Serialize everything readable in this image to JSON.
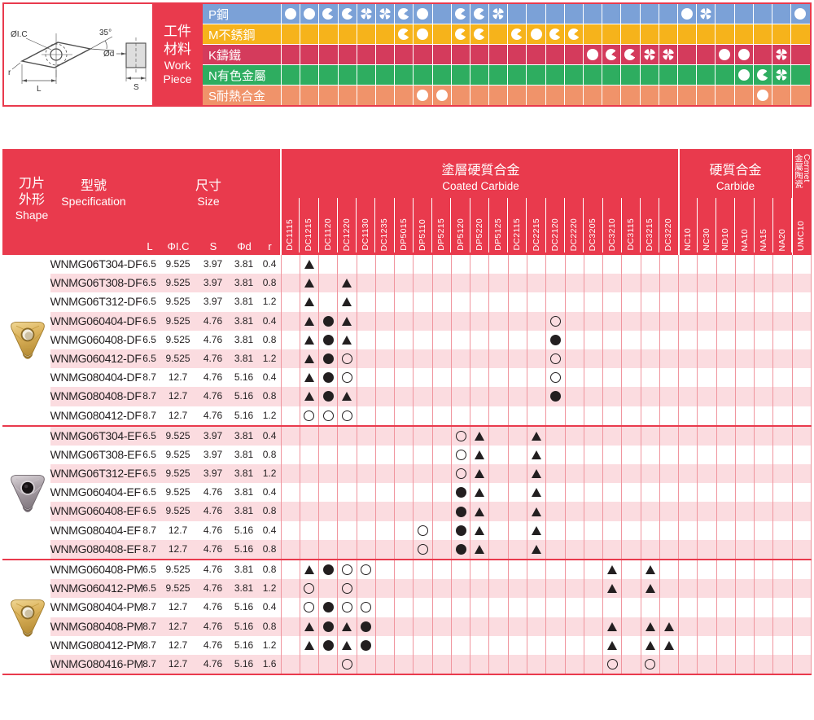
{
  "diagram": {
    "ic": "ØI.C",
    "angle": "35°",
    "d": "Ød",
    "r": "r",
    "length": "L",
    "thickness": "S"
  },
  "workpiece": {
    "title_zh": [
      "工件",
      "材料"
    ],
    "title_en": [
      "Work",
      "Piece"
    ],
    "rows": [
      {
        "id": "P",
        "label": "P鋼",
        "color": "#7ba1d7",
        "marks": {
          "DC1115": "full",
          "DC1215": "full",
          "DC1120": "pac",
          "DC1220": "pac",
          "DC1130": "petal",
          "DC1235": "petal",
          "DP5015": "pac",
          "DP5110": "full",
          "DP5120": "pac",
          "DP5220": "pac",
          "DP5125": "petal",
          "NC10": "full",
          "NC30": "petal",
          "UMC10": "full"
        }
      },
      {
        "id": "M",
        "label": "M不銹鋼",
        "color": "#f6b31b",
        "marks": {
          "DP5015": "pac",
          "DP5110": "full",
          "DP5120": "pac",
          "DP5220": "pac",
          "DC2115": "pac",
          "DC2215": "full",
          "DC2120": "pac",
          "DC2220": "pac"
        }
      },
      {
        "id": "K",
        "label": "K鑄鐵",
        "color": "#d43b5c",
        "marks": {
          "DC3205": "full",
          "DC3210": "pac",
          "DC3115": "pac",
          "DC3215": "petal",
          "DC3220": "petal",
          "ND10": "full",
          "NA10": "full",
          "NA20": "petal"
        }
      },
      {
        "id": "N",
        "label": "N有色金屬",
        "color": "#2ead60",
        "marks": {
          "NA10": "full",
          "NA15": "pac",
          "NA20": "petal"
        }
      },
      {
        "id": "S",
        "label": "S耐熱合金",
        "color": "#f0936a",
        "marks": {
          "DP5110": "full",
          "DP5215": "full",
          "NA15": "full"
        }
      }
    ]
  },
  "columns": {
    "groups": [
      {
        "zh": "塗層硬質合金",
        "en": "Coated Carbide",
        "span": 21
      },
      {
        "zh": "硬質合金",
        "en": "Carbide",
        "span": 6
      },
      {
        "zh": "金屬陶瓷",
        "en": "Cermet",
        "span": 1
      }
    ],
    "grades": [
      "DC1115",
      "DC1215",
      "DC1120",
      "DC1220",
      "DC1130",
      "DC1235",
      "DP5015",
      "DP5110",
      "DP5215",
      "DP5120",
      "DP5220",
      "DP5125",
      "DC2115",
      "DC2215",
      "DC2120",
      "DC2220",
      "DC3205",
      "DC3210",
      "DC3115",
      "DC3215",
      "DC3220",
      "NC10",
      "NC30",
      "ND10",
      "NA10",
      "NA15",
      "NA20",
      "UMC10"
    ]
  },
  "table_head": {
    "shape_zh": [
      "刀片",
      "外形"
    ],
    "shape_en": "Shape",
    "spec_zh": "型號",
    "spec_en": "Specification",
    "size_zh": "尺寸",
    "size_en": "Size",
    "size_cols": [
      "L",
      "ΦI.C",
      "S",
      "Φd",
      "r"
    ]
  },
  "groups": [
    {
      "suffix": "DF",
      "insert_style": "gold",
      "rows": [
        {
          "spec": "WNMG06T304-DF",
          "sizes": [
            "6.5",
            "9.525",
            "3.97",
            "3.81",
            "0.4"
          ],
          "marks": {
            "DC1215": "tri"
          }
        },
        {
          "spec": "WNMG06T308-DF",
          "sizes": [
            "6.5",
            "9.525",
            "3.97",
            "3.81",
            "0.8"
          ],
          "marks": {
            "DC1215": "tri",
            "DC1220": "tri"
          }
        },
        {
          "spec": "WNMG06T312-DF",
          "sizes": [
            "6.5",
            "9.525",
            "3.97",
            "3.81",
            "1.2"
          ],
          "marks": {
            "DC1215": "tri",
            "DC1220": "tri"
          }
        },
        {
          "spec": "WNMG060404-DF",
          "sizes": [
            "6.5",
            "9.525",
            "4.76",
            "3.81",
            "0.4"
          ],
          "marks": {
            "DC1215": "tri",
            "DC1120": "fill",
            "DC1220": "tri",
            "DC2120": "open"
          }
        },
        {
          "spec": "WNMG060408-DF",
          "sizes": [
            "6.5",
            "9.525",
            "4.76",
            "3.81",
            "0.8"
          ],
          "marks": {
            "DC1215": "tri",
            "DC1120": "fill",
            "DC1220": "tri",
            "DC2120": "fill"
          }
        },
        {
          "spec": "WNMG060412-DF",
          "sizes": [
            "6.5",
            "9.525",
            "4.76",
            "3.81",
            "1.2"
          ],
          "marks": {
            "DC1215": "tri",
            "DC1120": "fill",
            "DC1220": "open",
            "DC2120": "open"
          }
        },
        {
          "spec": "WNMG080404-DF",
          "sizes": [
            "8.7",
            "12.7",
            "4.76",
            "5.16",
            "0.4"
          ],
          "marks": {
            "DC1215": "tri",
            "DC1120": "fill",
            "DC1220": "open",
            "DC2120": "open"
          }
        },
        {
          "spec": "WNMG080408-DF",
          "sizes": [
            "8.7",
            "12.7",
            "4.76",
            "5.16",
            "0.8"
          ],
          "marks": {
            "DC1215": "tri",
            "DC1120": "fill",
            "DC1220": "tri",
            "DC2120": "fill"
          }
        },
        {
          "spec": "WNMG080412-DF",
          "sizes": [
            "8.7",
            "12.7",
            "4.76",
            "5.16",
            "1.2"
          ],
          "marks": {
            "DC1215": "open",
            "DC1120": "open",
            "DC1220": "open"
          }
        }
      ]
    },
    {
      "suffix": "EF",
      "insert_style": "silver",
      "rows": [
        {
          "spec": "WNMG06T304-EF",
          "sizes": [
            "6.5",
            "9.525",
            "3.97",
            "3.81",
            "0.4"
          ],
          "marks": {
            "DP5120": "open",
            "DP5220": "tri",
            "DC2215": "tri"
          }
        },
        {
          "spec": "WNMG06T308-EF",
          "sizes": [
            "6.5",
            "9.525",
            "3.97",
            "3.81",
            "0.8"
          ],
          "marks": {
            "DP5120": "open",
            "DP5220": "tri",
            "DC2215": "tri"
          }
        },
        {
          "spec": "WNMG06T312-EF",
          "sizes": [
            "6.5",
            "9.525",
            "3.97",
            "3.81",
            "1.2"
          ],
          "marks": {
            "DP5120": "open",
            "DP5220": "tri",
            "DC2215": "tri"
          }
        },
        {
          "spec": "WNMG060404-EF",
          "sizes": [
            "6.5",
            "9.525",
            "4.76",
            "3.81",
            "0.4"
          ],
          "marks": {
            "DP5120": "fill",
            "DP5220": "tri",
            "DC2215": "tri"
          }
        },
        {
          "spec": "WNMG060408-EF",
          "sizes": [
            "6.5",
            "9.525",
            "4.76",
            "3.81",
            "0.8"
          ],
          "marks": {
            "DP5120": "fill",
            "DP5220": "tri",
            "DC2215": "tri"
          }
        },
        {
          "spec": "WNMG080404-EF",
          "sizes": [
            "8.7",
            "12.7",
            "4.76",
            "5.16",
            "0.4"
          ],
          "marks": {
            "DP5110": "open",
            "DP5120": "fill",
            "DP5220": "tri",
            "DC2215": "tri"
          }
        },
        {
          "spec": "WNMG080408-EF",
          "sizes": [
            "8.7",
            "12.7",
            "4.76",
            "5.16",
            "0.8"
          ],
          "marks": {
            "DP5110": "open",
            "DP5120": "fill",
            "DP5220": "tri",
            "DC2215": "tri"
          }
        }
      ]
    },
    {
      "suffix": "PM",
      "insert_style": "gold",
      "rows": [
        {
          "spec": "WNMG060408-PM",
          "sizes": [
            "6.5",
            "9.525",
            "4.76",
            "3.81",
            "0.8"
          ],
          "marks": {
            "DC1215": "tri",
            "DC1120": "fill",
            "DC1220": "open",
            "DC1130": "open",
            "DC3210": "tri",
            "DC3215": "tri"
          }
        },
        {
          "spec": "WNMG060412-PM",
          "sizes": [
            "6.5",
            "9.525",
            "4.76",
            "3.81",
            "1.2"
          ],
          "marks": {
            "DC1215": "open",
            "DC1220": "open",
            "DC3210": "tri",
            "DC3215": "tri"
          }
        },
        {
          "spec": "WNMG080404-PM",
          "sizes": [
            "8.7",
            "12.7",
            "4.76",
            "5.16",
            "0.4"
          ],
          "marks": {
            "DC1215": "open",
            "DC1120": "fill",
            "DC1220": "open",
            "DC1130": "open"
          }
        },
        {
          "spec": "WNMG080408-PM",
          "sizes": [
            "8.7",
            "12.7",
            "4.76",
            "5.16",
            "0.8"
          ],
          "marks": {
            "DC1215": "tri",
            "DC1120": "fill",
            "DC1220": "tri",
            "DC1130": "fill",
            "DC3210": "tri",
            "DC3215": "tri",
            "DC3220": "tri"
          }
        },
        {
          "spec": "WNMG080412-PM",
          "sizes": [
            "8.7",
            "12.7",
            "4.76",
            "5.16",
            "1.2"
          ],
          "marks": {
            "DC1215": "tri",
            "DC1120": "fill",
            "DC1220": "tri",
            "DC1130": "fill",
            "DC3210": "tri",
            "DC3215": "tri",
            "DC3220": "tri"
          }
        },
        {
          "spec": "WNMG080416-PM",
          "sizes": [
            "8.7",
            "12.7",
            "4.76",
            "5.16",
            "1.6"
          ],
          "marks": {
            "DC1220": "open",
            "DC3210": "open",
            "DC3215": "open"
          }
        }
      ]
    }
  ],
  "colors": {
    "header_red": "#e93a4d",
    "stripe_pink": "#fbdce0",
    "grid_line": "#f0959e",
    "mark_black": "#231f20",
    "p_blue": "#7ba1d7",
    "m_yellow": "#f6b31b",
    "k_red": "#d43b5c",
    "n_green": "#2ead60",
    "s_orange": "#f0936a"
  }
}
